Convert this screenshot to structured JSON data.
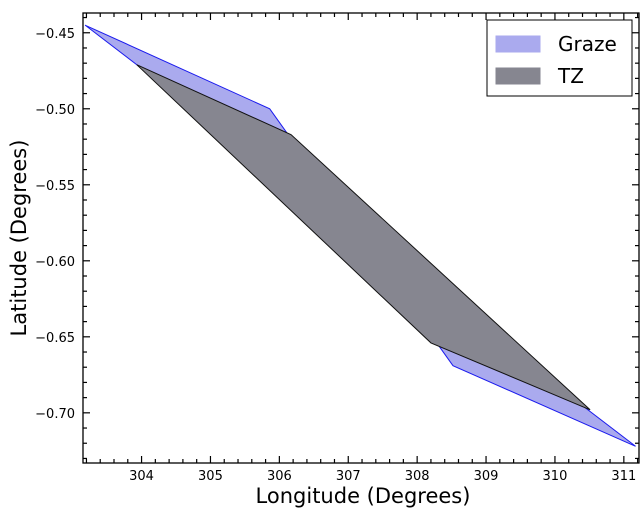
{
  "chart_data": {
    "type": "area",
    "xlabel": "Longitude (Degrees)",
    "ylabel": "Latitude (Degrees)",
    "xlim": [
      303.15,
      311.22
    ],
    "ylim": [
      -0.733,
      -0.437
    ],
    "xticks": [
      304,
      305,
      306,
      307,
      308,
      309,
      310,
      311
    ],
    "yticks": [
      -0.45,
      -0.5,
      -0.55,
      -0.6,
      -0.65,
      -0.7
    ],
    "xtick_labels": [
      "304",
      "305",
      "306",
      "307",
      "308",
      "309",
      "310",
      "311"
    ],
    "ytick_labels": [
      "−0.45",
      "−0.50",
      "−0.55",
      "−0.60",
      "−0.65",
      "−0.70"
    ],
    "grid": false,
    "legend_position": "top-right",
    "series": [
      {
        "name": "Graze",
        "fill_color": "#aaaaee",
        "edge_color": "#1a1aee",
        "points": [
          [
            303.18,
            -0.445
          ],
          [
            305.86,
            -0.5
          ],
          [
            308.52,
            -0.669
          ],
          [
            311.17,
            -0.722
          ]
        ]
      },
      {
        "name": "TZ",
        "fill_color": "#868690",
        "edge_color": "#111111",
        "points": [
          [
            303.93,
            -0.471
          ],
          [
            306.17,
            -0.517
          ],
          [
            310.51,
            -0.698
          ],
          [
            308.2,
            -0.654
          ]
        ]
      }
    ]
  }
}
